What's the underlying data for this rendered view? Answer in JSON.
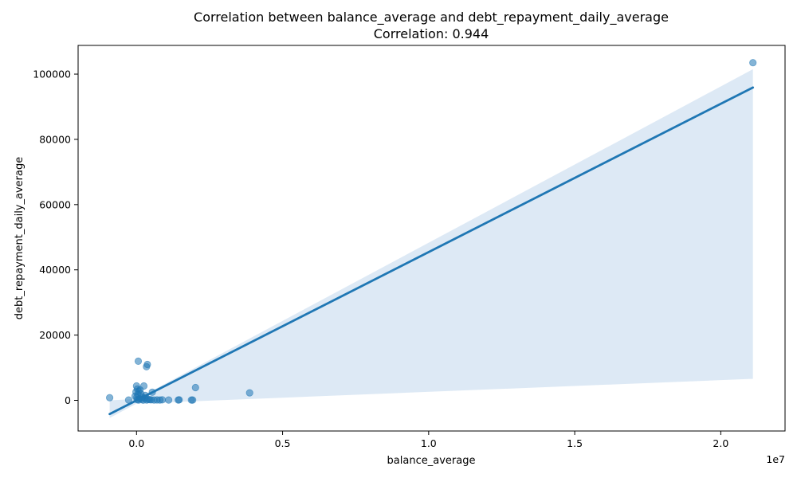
{
  "chart_data": {
    "type": "scatter",
    "title": "Correlation between balance_average and debt_repayment_daily_average",
    "subtitle": "Correlation: 0.944",
    "xlabel": "balance_average",
    "ylabel": "debt_repayment_daily_average",
    "x_offset_label": "1e7",
    "xlim": [
      -2000000,
      22200000
    ],
    "ylim": [
      -9400,
      108800
    ],
    "x_ticks": [
      0,
      5000000,
      10000000,
      15000000,
      20000000
    ],
    "x_tick_labels": [
      "0.0",
      "0.5",
      "1.0",
      "1.5",
      "2.0"
    ],
    "y_ticks": [
      0,
      20000,
      40000,
      60000,
      80000,
      100000
    ],
    "y_tick_labels": [
      "0",
      "20000",
      "40000",
      "60000",
      "80000",
      "100000"
    ],
    "grid": false,
    "legend": "none",
    "colors": {
      "points": "#1f77b4",
      "fit_line": "#1f77b4",
      "band": "#c6dbef"
    },
    "points": [
      {
        "x": 21100000,
        "y": 103500
      },
      {
        "x": 3870000,
        "y": 2300
      },
      {
        "x": 2020000,
        "y": 3900
      },
      {
        "x": 1920000,
        "y": 100
      },
      {
        "x": 1880000,
        "y": 100
      },
      {
        "x": 1460000,
        "y": 150
      },
      {
        "x": 1430000,
        "y": 100
      },
      {
        "x": 1100000,
        "y": 100
      },
      {
        "x": 880000,
        "y": 150
      },
      {
        "x": 800000,
        "y": 100
      },
      {
        "x": 700000,
        "y": 120
      },
      {
        "x": 600000,
        "y": 100
      },
      {
        "x": 540000,
        "y": 2500
      },
      {
        "x": 450000,
        "y": 200
      },
      {
        "x": 350000,
        "y": 100
      },
      {
        "x": 300000,
        "y": 1500
      },
      {
        "x": 250000,
        "y": 4400
      },
      {
        "x": 200000,
        "y": 1000
      },
      {
        "x": 150000,
        "y": 2000
      },
      {
        "x": 120000,
        "y": 3200
      },
      {
        "x": 100000,
        "y": 500
      },
      {
        "x": 80000,
        "y": 2800
      },
      {
        "x": 50000,
        "y": 1800
      },
      {
        "x": 30000,
        "y": 3500
      },
      {
        "x": 10000,
        "y": 900
      },
      {
        "x": 0,
        "y": 4400
      },
      {
        "x": -20000,
        "y": 2600
      },
      {
        "x": -50000,
        "y": 1300
      },
      {
        "x": 60000,
        "y": 12000
      },
      {
        "x": 370000,
        "y": 11000
      },
      {
        "x": 340000,
        "y": 10300
      },
      {
        "x": -270000,
        "y": 100
      },
      {
        "x": -920000,
        "y": 800
      },
      {
        "x": 20000,
        "y": 200
      },
      {
        "x": 70000,
        "y": 100
      },
      {
        "x": 180000,
        "y": 300
      },
      {
        "x": 230000,
        "y": 50
      },
      {
        "x": 280000,
        "y": 700
      },
      {
        "x": 400000,
        "y": 300
      },
      {
        "x": 500000,
        "y": 150
      }
    ],
    "regression": {
      "x_start": -920000,
      "y_start": -4200,
      "x_end": 21100000,
      "y_end": 95900
    },
    "confidence_band": [
      {
        "x": -920000,
        "lower": -5400,
        "upper": 0
      },
      {
        "x": 0,
        "lower": -1000,
        "upper": 400
      },
      {
        "x": 21100000,
        "lower": 6600,
        "upper": 101500
      }
    ]
  }
}
